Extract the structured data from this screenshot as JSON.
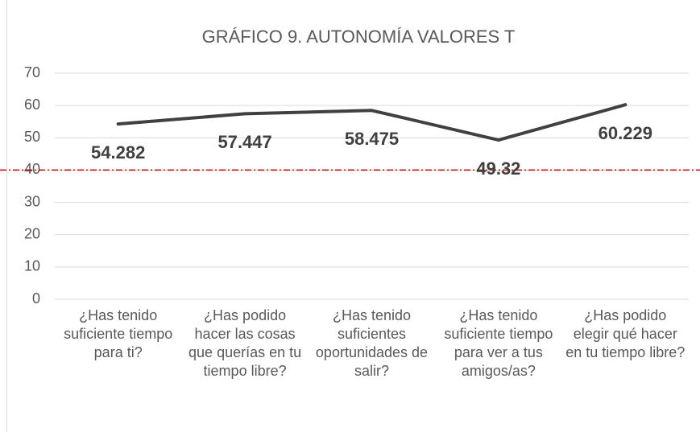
{
  "chart_data": {
    "type": "line",
    "title": "GRÁFICO 9. AUTONOMÍA VALORES T",
    "categories": [
      "¿Has tenido suficiente tiempo para ti?",
      "¿Has podido hacer las cosas que querías en tu tiempo libre?",
      "¿Has tenido suficientes oportunidades de salir?",
      "¿Has tenido suficiente tiempo para ver a tus amigos/as?",
      "¿Has podido elegir qué hacer en tu tiempo libre?"
    ],
    "series": [
      {
        "name": "Valores T",
        "color": "#404040",
        "values": [
          54.282,
          57.447,
          58.475,
          49.32,
          60.229
        ]
      }
    ],
    "ylim": [
      0,
      70
    ],
    "yticks": [
      0,
      10,
      20,
      30,
      40,
      50,
      60,
      70
    ],
    "grid": true,
    "reference_line": {
      "value": 40,
      "color": "#c00000"
    }
  }
}
